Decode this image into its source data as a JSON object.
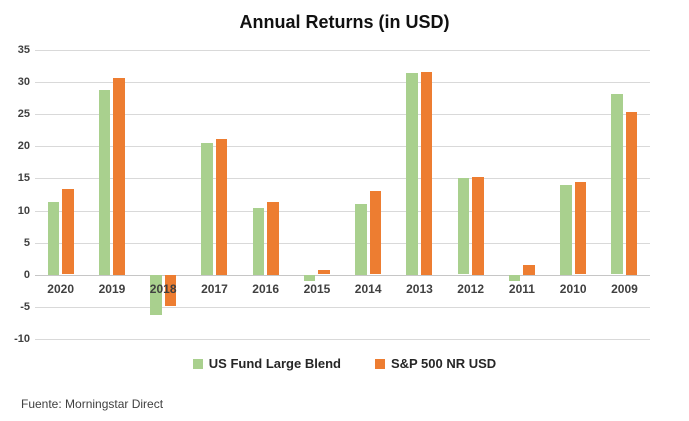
{
  "title": "Annual Returns (in USD)",
  "footer": "Fuente: Morningstar Direct",
  "colors": {
    "series_green": "#A9D08E",
    "series_orange": "#ED7D31",
    "gridline": "#D9D9D9",
    "zero_line": "#C6C6C6",
    "axis_text": "#404040",
    "title_text": "#111111",
    "background": "#FFFFFF"
  },
  "chart_data": {
    "type": "bar",
    "title": "Annual Returns (in USD)",
    "categories": [
      "2020",
      "2019",
      "2018",
      "2017",
      "2016",
      "2015",
      "2014",
      "2013",
      "2012",
      "2011",
      "2010",
      "2009"
    ],
    "series": [
      {
        "name": "US Fund Large Blend",
        "color": "#A9D08E",
        "values": [
          11.4,
          28.8,
          -6.3,
          20.5,
          10.4,
          -0.9,
          11.0,
          31.4,
          15.0,
          -1.0,
          14.0,
          28.1
        ]
      },
      {
        "name": "S&P 500 NR USD",
        "color": "#ED7D31",
        "values": [
          13.3,
          30.7,
          -4.9,
          21.1,
          11.3,
          0.7,
          13.0,
          31.6,
          15.2,
          1.5,
          14.4,
          25.4
        ]
      }
    ],
    "xlabel": "",
    "ylabel": "",
    "ylim": [
      -10,
      35
    ],
    "yticks": [
      35,
      30,
      25,
      20,
      15,
      10,
      5,
      0,
      -5,
      -10
    ],
    "grid": true,
    "legend_position": "bottom"
  }
}
